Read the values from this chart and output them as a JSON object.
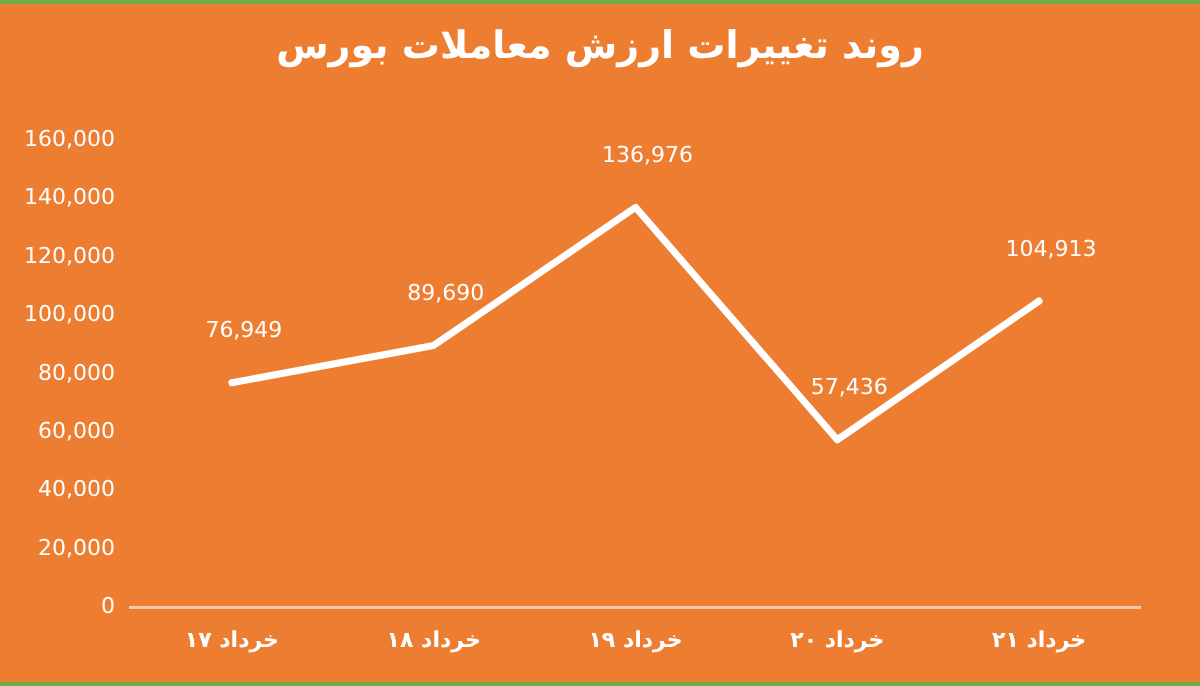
{
  "chart_data": {
    "type": "line",
    "title": "روند تغییرات ارزش معاملات بورس",
    "categories": [
      "۱۷ خرداد",
      "۱۸ خرداد",
      "۱۹ خرداد",
      "۲۰ خرداد",
      "۲۱ خرداد"
    ],
    "series": [
      {
        "color": "#ffffff",
        "values": [
          76949,
          89690,
          136976,
          57436,
          104913
        ],
        "value_labels": [
          "76,949",
          "89,690",
          "136,976",
          "57,436",
          "104,913"
        ]
      }
    ],
    "ylim": [
      0,
      160000
    ],
    "yticks": [
      0,
      {
        "value": 20000,
        "label": "20,000"
      },
      {
        "value": 40000,
        "label": "40,000"
      },
      {
        "value": 60000,
        "label": "60,000"
      },
      {
        "value": 80000,
        "label": "80,000"
      },
      {
        "value": 100000,
        "label": "100,000"
      },
      {
        "value": 120000,
        "label": "120,000"
      },
      {
        "value": 140000,
        "label": "140,000"
      },
      {
        "value": 160000,
        "label": "160,000"
      }
    ],
    "grid": false,
    "legend": false,
    "marker": "none",
    "line_style": "solid"
  }
}
